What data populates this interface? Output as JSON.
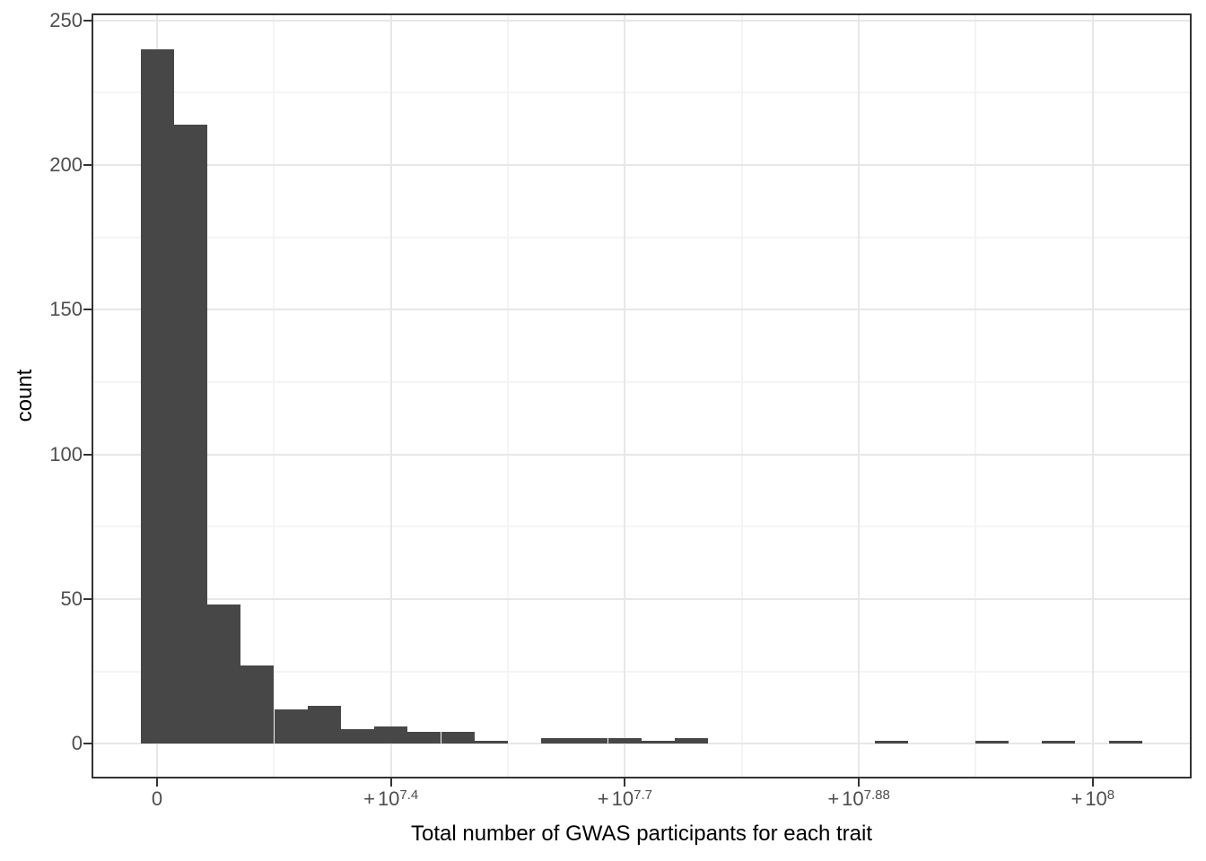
{
  "chart_data": {
    "type": "bar",
    "subtype": "histogram",
    "title": "",
    "xlabel": "Total number of GWAS participants for each trait",
    "ylabel": "count",
    "categories": [
      "bin01",
      "bin02",
      "bin03",
      "bin04",
      "bin05",
      "bin06",
      "bin07",
      "bin08",
      "bin09",
      "bin10",
      "bin11",
      "bin12",
      "bin13",
      "bin14",
      "bin15",
      "bin16",
      "bin17",
      "bin18",
      "bin19",
      "bin20",
      "bin21",
      "bin22",
      "bin23",
      "bin24",
      "bin25",
      "bin26",
      "bin27",
      "bin28",
      "bin29",
      "bin30"
    ],
    "values": [
      240,
      214,
      48,
      27,
      12,
      13,
      5,
      6,
      4,
      4,
      1,
      0,
      2,
      2,
      2,
      1,
      2,
      0,
      0,
      0,
      0,
      0,
      1,
      0,
      0,
      1,
      0,
      1,
      0,
      1
    ],
    "ylim": [
      0,
      250
    ],
    "y_major_ticks": [
      0,
      50,
      100,
      150,
      200,
      250
    ],
    "y_minor_ticks": [
      25,
      75,
      125,
      175,
      225
    ],
    "x_tick_labels": [
      "0",
      "+10^7.4",
      "+10^7.7",
      "+10^7.88",
      "+10^8"
    ],
    "grid": "major and minor, light gray on white, full panel border",
    "legend_position": "none",
    "bar_color": "#474747",
    "axis_text_color": "#4d4d4d",
    "axis_title_color": "#000000",
    "panel_border_color": "#333333",
    "grid_major_color": "#e7e7e7",
    "grid_minor_color": "#f4f4f4"
  }
}
